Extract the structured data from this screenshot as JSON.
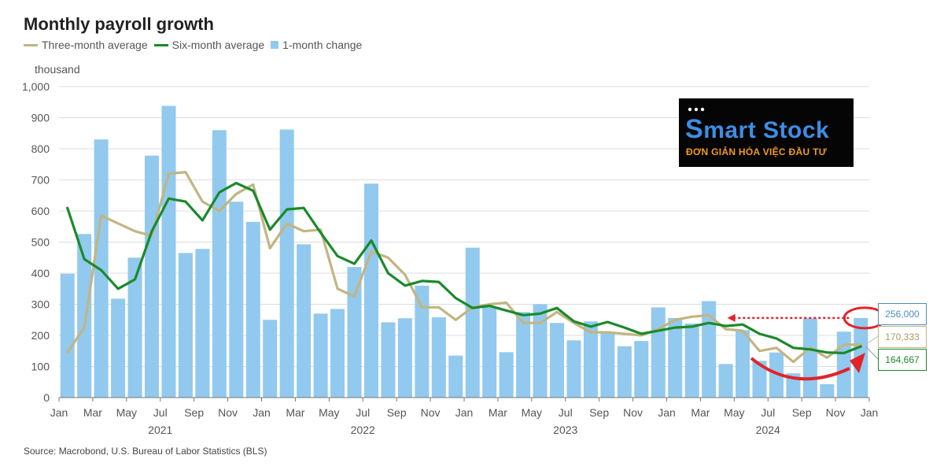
{
  "header": {
    "title": "Monthly payroll growth",
    "unit": "thousand",
    "source": "Source: Macrobond, U.S. Bureau of Labor Statistics (BLS)"
  },
  "legend": [
    {
      "label": "Three-month average",
      "color": "#c2b582",
      "kind": "line"
    },
    {
      "label": "Six-month average",
      "color": "#1a8a2a",
      "kind": "line"
    },
    {
      "label": "1-month change",
      "color": "#92c9ee",
      "kind": "box"
    }
  ],
  "logo": {
    "brand_part1": "S",
    "brand_part2": "mart Stock",
    "tagline": "ĐƠN GIẢN HÓA VIỆC ĐẦU TƯ"
  },
  "annotations": {
    "bar_last": "256,000",
    "three_month_last": "170,333",
    "six_month_last": "164,667"
  },
  "colors": {
    "bar": "#92c9ee",
    "three_month": "#c2b582",
    "six_month": "#1a8a2a",
    "grid": "#dcdcdc",
    "annotation": "#e0242a"
  },
  "chart_data": {
    "type": "bar",
    "title": "Monthly payroll growth",
    "ylabel": "thousand",
    "ylim": [
      0,
      1000
    ],
    "yticks": [
      "0",
      "100",
      "200",
      "300",
      "400",
      "500",
      "600",
      "700",
      "800",
      "900",
      "1,000"
    ],
    "xticks": [
      "Jan",
      "Mar",
      "May",
      "Jul",
      "Sep",
      "Nov",
      "Jan",
      "Mar",
      "May",
      "Jul",
      "Sep",
      "Nov",
      "Jan",
      "Mar",
      "May",
      "Jul",
      "Sep",
      "Nov",
      "Jan",
      "Mar",
      "May",
      "Jul",
      "Sep",
      "Nov",
      "Jan",
      "Mar",
      "May",
      "Jul",
      "Sep",
      "Nov",
      "Jan",
      "Mar",
      "May",
      "Jul",
      "Sep",
      "Nov",
      "Jan",
      "Mar",
      "May",
      "Jul",
      "Sep",
      "Nov",
      "Jan",
      "Mar",
      "May",
      "Jul",
      "Sep",
      "Nov",
      "Jan"
    ],
    "years": [
      "2021",
      "2022",
      "2023",
      "2024"
    ],
    "grid": true,
    "legend_position": "top-left",
    "categories": [
      "2021-01",
      "2021-02",
      "2021-03",
      "2021-04",
      "2021-05",
      "2021-06",
      "2021-07",
      "2021-08",
      "2021-09",
      "2021-10",
      "2021-11",
      "2021-12",
      "2022-01",
      "2022-02",
      "2022-03",
      "2022-04",
      "2022-05",
      "2022-06",
      "2022-07",
      "2022-08",
      "2022-09",
      "2022-10",
      "2022-11",
      "2022-12",
      "2023-01",
      "2023-02",
      "2023-03",
      "2023-04",
      "2023-05",
      "2023-06",
      "2023-07",
      "2023-08",
      "2023-09",
      "2023-10",
      "2023-11",
      "2023-12",
      "2024-01",
      "2024-02",
      "2024-03",
      "2024-04",
      "2024-05",
      "2024-06",
      "2024-07",
      "2024-08",
      "2024-09",
      "2024-10",
      "2024-11",
      "2024-12"
    ],
    "series": [
      {
        "name": "1-month change",
        "kind": "bar",
        "values": [
          398,
          526,
          830,
          318,
          450,
          778,
          938,
          465,
          478,
          860,
          630,
          565,
          250,
          862,
          493,
          270,
          285,
          420,
          688,
          242,
          255,
          360,
          258,
          135,
          482,
          290,
          146,
          275,
          300,
          240,
          184,
          245,
          210,
          165,
          182,
          290,
          256,
          238,
          310,
          108,
          217,
          118,
          145,
          78,
          255,
          43,
          212,
          256
        ]
      },
      {
        "name": "Three-month average",
        "kind": "line",
        "values": [
          145,
          225,
          585,
          560,
          535,
          520,
          720,
          725,
          630,
          600,
          655,
          685,
          480,
          560,
          535,
          540,
          350,
          325,
          470,
          450,
          395,
          290,
          290,
          250,
          290,
          300,
          305,
          240,
          240,
          275,
          240,
          210,
          210,
          205,
          200,
          220,
          250,
          260,
          265,
          220,
          215,
          150,
          160,
          115,
          160,
          128,
          170,
          170.333
        ]
      },
      {
        "name": "Six-month average",
        "kind": "line",
        "values": [
          610,
          445,
          410,
          350,
          380,
          535,
          640,
          630,
          570,
          660,
          690,
          665,
          540,
          605,
          610,
          530,
          455,
          430,
          505,
          400,
          360,
          375,
          372,
          320,
          288,
          295,
          280,
          265,
          270,
          288,
          245,
          228,
          243,
          225,
          205,
          215,
          225,
          228,
          240,
          230,
          235,
          205,
          190,
          160,
          155,
          145,
          143,
          164.667
        ]
      }
    ]
  }
}
